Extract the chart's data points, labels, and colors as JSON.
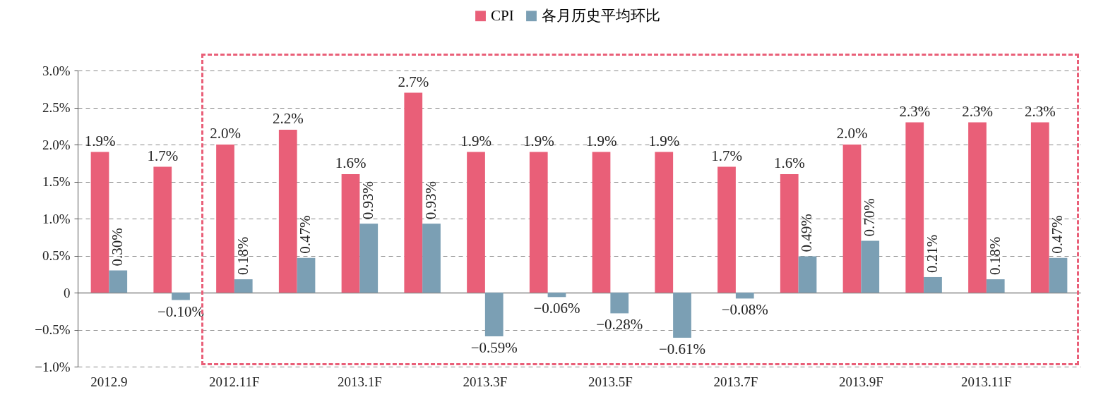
{
  "chart_data": {
    "type": "bar",
    "categories": [
      "2012.9",
      null,
      "2012.11F",
      null,
      "2013.1F",
      null,
      "2013.3F",
      null,
      "2013.5F",
      null,
      "2013.7F",
      null,
      "2013.9F",
      null,
      "2013.11F",
      null
    ],
    "series": [
      {
        "name": "CPI",
        "color": "#e95f78",
        "values": [
          1.9,
          1.7,
          2.0,
          2.2,
          1.6,
          2.7,
          1.9,
          1.9,
          1.9,
          1.9,
          1.7,
          1.6,
          2.0,
          2.3,
          2.3,
          2.3
        ],
        "value_labels": [
          "1.9%",
          "1.7%",
          "2.0%",
          "2.2%",
          "1.6%",
          "2.7%",
          "1.9%",
          "1.9%",
          "1.9%",
          "1.9%",
          "1.7%",
          "1.6%",
          "2.0%",
          "2.3%",
          "2.3%",
          "2.3%"
        ]
      },
      {
        "name": "各月历史平均环比",
        "color": "#7b9fb4",
        "values": [
          0.3,
          -0.1,
          0.18,
          0.47,
          0.93,
          0.93,
          -0.59,
          -0.06,
          -0.28,
          -0.61,
          -0.08,
          0.49,
          0.7,
          0.21,
          0.18,
          0.47
        ],
        "value_labels": [
          "0.30%",
          "−0.10%",
          "0.18%",
          "0.47%",
          "0.93%",
          "0.93%",
          "−0.59%",
          "−0.06%",
          "−0.28%",
          "−0.61%",
          "−0.08%",
          "0.49%",
          "0.70%",
          "0.21%",
          "0.18%",
          "0.47%"
        ]
      }
    ],
    "ylim": [
      -1.0,
      3.0
    ],
    "yticks": [
      {
        "value": -1.0,
        "label": "−1.0%"
      },
      {
        "value": -0.5,
        "label": "−0.5%"
      },
      {
        "value": 0,
        "label": "0"
      },
      {
        "value": 0.5,
        "label": "0.5%"
      },
      {
        "value": 1.0,
        "label": "1.0%"
      },
      {
        "value": 1.5,
        "label": "1.5%"
      },
      {
        "value": 2.0,
        "label": "2.0%"
      },
      {
        "value": 2.5,
        "label": "2.5%"
      },
      {
        "value": 3.0,
        "label": "3.0%"
      }
    ],
    "grid": "y",
    "legend": "top"
  }
}
